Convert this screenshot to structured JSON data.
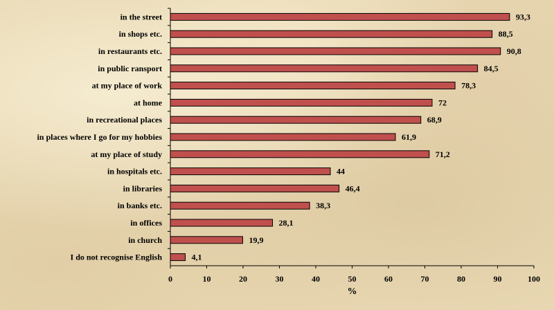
{
  "chart_data": {
    "type": "bar",
    "orientation": "horizontal",
    "categories": [
      "in the street",
      "in shops etc.",
      "in restaurants etc.",
      "in public ransport",
      "at my place of work",
      "at home",
      "in recreational places",
      "in places where I go for my hobbies",
      "at my place of study",
      "in hospitals etc.",
      "in libraries",
      "in banks etc.",
      "in offices",
      "in church",
      "I do not recognise English"
    ],
    "values": [
      93.3,
      88.5,
      90.8,
      84.5,
      78.3,
      72,
      68.9,
      61.9,
      71.2,
      44,
      46.4,
      38.3,
      28.1,
      19.9,
      4.1
    ],
    "value_labels": [
      "93,3",
      "88,5",
      "90,8",
      "84,5",
      "78,3",
      "72",
      "68,9",
      "61,9",
      "71,2",
      "44",
      "46,4",
      "38,3",
      "28,1",
      "19,9",
      "4,1"
    ],
    "xlabel": "%",
    "xlim": [
      0,
      100
    ],
    "xticks": [
      0,
      10,
      20,
      30,
      40,
      50,
      60,
      70,
      80,
      90,
      100
    ],
    "bar_color": "#c0504d",
    "bar_border_color": "#000000",
    "grid": false,
    "legend": false
  }
}
